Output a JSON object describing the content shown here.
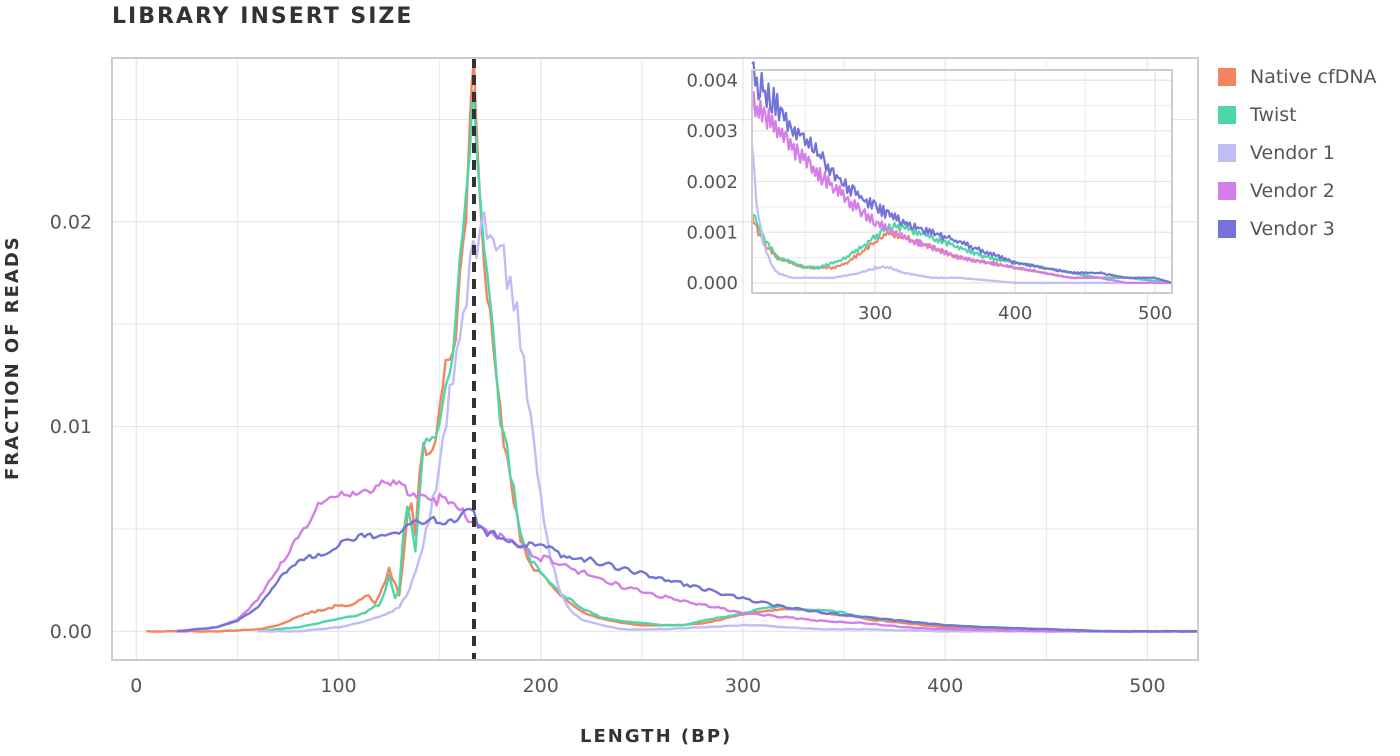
{
  "chart_data": [
    {
      "type": "line",
      "title": "LIBRARY INSERT SIZE",
      "xlabel": "LENGTH (BP)",
      "ylabel": "FRACTION OF READS",
      "xlim": [
        -12,
        525
      ],
      "ylim": [
        -0.0014,
        0.028
      ],
      "xticks": [
        "0",
        "100",
        "200",
        "300",
        "400",
        "500"
      ],
      "yticks": [
        "0.00",
        "0.01",
        "0.02"
      ],
      "grid": true,
      "legend_position": "right",
      "vline": {
        "x": 167,
        "style": "dashed",
        "color": "#333333"
      },
      "series": [
        {
          "name": "Native cfDNA",
          "color": "#f4845f",
          "x": [
            5,
            20,
            40,
            60,
            70,
            80,
            85,
            90,
            95,
            100,
            105,
            110,
            115,
            118,
            120,
            125,
            130,
            132,
            134,
            136,
            138,
            140,
            142,
            145,
            148,
            150,
            153,
            155,
            158,
            160,
            163,
            165,
            166,
            167,
            168,
            170,
            172,
            175,
            178,
            180,
            185,
            190,
            195,
            200,
            210,
            220,
            230,
            240,
            250,
            260,
            270,
            280,
            290,
            300,
            310,
            320,
            330,
            340,
            350,
            360,
            380,
            400,
            420,
            450,
            480,
            525
          ],
          "y": [
            0.0,
            0.0,
            0.0,
            0.0001,
            0.0003,
            0.0007,
            0.0009,
            0.001,
            0.0011,
            0.0013,
            0.0012,
            0.0015,
            0.0018,
            0.0014,
            0.0017,
            0.003,
            0.0018,
            0.0035,
            0.0055,
            0.0062,
            0.0045,
            0.0075,
            0.0093,
            0.0088,
            0.0095,
            0.0105,
            0.0128,
            0.0127,
            0.0148,
            0.0175,
            0.0205,
            0.0245,
            0.026,
            0.0268,
            0.0245,
            0.021,
            0.018,
            0.016,
            0.0125,
            0.0105,
            0.0075,
            0.0045,
            0.0032,
            0.0028,
            0.0017,
            0.001,
            0.0006,
            0.0004,
            0.0003,
            0.0003,
            0.0003,
            0.0004,
            0.0006,
            0.0008,
            0.001,
            0.0011,
            0.001,
            0.0009,
            0.0008,
            0.0006,
            0.0004,
            0.0002,
            0.0001,
            0.0001,
            0.0,
            0.0
          ]
        },
        {
          "name": "Twist",
          "color": "#4fd6a8",
          "x": [
            60,
            70,
            80,
            90,
            100,
            110,
            115,
            118,
            120,
            123,
            125,
            128,
            130,
            132,
            134,
            136,
            138,
            140,
            142,
            145,
            148,
            150,
            153,
            155,
            158,
            160,
            163,
            165,
            166,
            167,
            168,
            170,
            172,
            175,
            178,
            180,
            185,
            190,
            195,
            200,
            210,
            220,
            230,
            240,
            250,
            260,
            270,
            280,
            290,
            300,
            310,
            320,
            330,
            340,
            350,
            360,
            380,
            400,
            420,
            450,
            480,
            525
          ],
          "y": [
            0.0,
            0.0001,
            0.0002,
            0.0004,
            0.0006,
            0.0008,
            0.001,
            0.0012,
            0.0013,
            0.002,
            0.0028,
            0.0016,
            0.002,
            0.0045,
            0.006,
            0.0055,
            0.004,
            0.0068,
            0.009,
            0.0092,
            0.0093,
            0.0105,
            0.0125,
            0.0126,
            0.015,
            0.0178,
            0.0205,
            0.024,
            0.0258,
            0.0265,
            0.025,
            0.0215,
            0.0185,
            0.016,
            0.0125,
            0.0105,
            0.0078,
            0.0048,
            0.0034,
            0.0029,
            0.0019,
            0.0011,
            0.0007,
            0.0005,
            0.0004,
            0.0003,
            0.0003,
            0.0005,
            0.0007,
            0.0009,
            0.0011,
            0.0012,
            0.0011,
            0.001,
            0.0009,
            0.0007,
            0.0005,
            0.0003,
            0.0002,
            0.0001,
            0.0,
            0.0
          ]
        },
        {
          "name": "Vendor 1",
          "color": "#bfbdf4",
          "x": [
            60,
            80,
            100,
            110,
            120,
            125,
            130,
            135,
            140,
            145,
            150,
            155,
            160,
            165,
            170,
            172,
            175,
            178,
            180,
            185,
            190,
            195,
            200,
            205,
            210,
            215,
            220,
            230,
            240,
            250,
            260,
            280,
            300,
            310,
            320,
            340,
            360,
            400,
            450,
            525
          ],
          "y": [
            0.0,
            0.0,
            0.0002,
            0.0004,
            0.0007,
            0.0009,
            0.0012,
            0.002,
            0.0035,
            0.0055,
            0.008,
            0.0115,
            0.0145,
            0.0175,
            0.0195,
            0.0197,
            0.0195,
            0.019,
            0.0185,
            0.017,
            0.0145,
            0.0105,
            0.0065,
            0.0035,
            0.0018,
            0.001,
            0.0006,
            0.0003,
            0.0001,
            0.0001,
            0.0001,
            0.0002,
            0.0003,
            0.0003,
            0.0002,
            0.0001,
            0.0001,
            0.0,
            0.0,
            0.0
          ]
        },
        {
          "name": "Vendor 2",
          "color": "#d57de8",
          "x": [
            20,
            40,
            50,
            60,
            70,
            80,
            90,
            100,
            110,
            120,
            130,
            140,
            150,
            160,
            167,
            170,
            180,
            190,
            200,
            220,
            240,
            260,
            280,
            300,
            320,
            340,
            360,
            380,
            400,
            450,
            525
          ],
          "y": [
            0.0,
            0.0002,
            0.0006,
            0.0015,
            0.003,
            0.0048,
            0.006,
            0.0066,
            0.0069,
            0.007,
            0.0071,
            0.0068,
            0.0064,
            0.0058,
            0.0055,
            0.0052,
            0.0046,
            0.004,
            0.0036,
            0.0029,
            0.0022,
            0.0017,
            0.0013,
            0.0009,
            0.0007,
            0.0005,
            0.0004,
            0.0002,
            0.0001,
            0.0,
            0.0
          ]
        },
        {
          "name": "Vendor 3",
          "color": "#7373d8",
          "x": [
            20,
            40,
            50,
            60,
            70,
            80,
            90,
            100,
            110,
            120,
            130,
            140,
            150,
            160,
            165,
            167,
            169,
            172,
            180,
            190,
            200,
            210,
            220,
            240,
            260,
            280,
            300,
            320,
            340,
            360,
            380,
            400,
            420,
            450,
            480,
            525
          ],
          "y": [
            0.0,
            0.0002,
            0.0005,
            0.0012,
            0.0025,
            0.0033,
            0.0038,
            0.0042,
            0.0045,
            0.0048,
            0.005,
            0.0052,
            0.0054,
            0.0056,
            0.006,
            0.0058,
            0.005,
            0.0048,
            0.0046,
            0.0043,
            0.0041,
            0.0038,
            0.0036,
            0.0031,
            0.0026,
            0.0021,
            0.0016,
            0.0012,
            0.0009,
            0.0007,
            0.0005,
            0.0003,
            0.0002,
            0.0001,
            0.0,
            0.0
          ]
        }
      ]
    },
    {
      "type": "line",
      "title": "",
      "xlabel": "",
      "ylabel": "",
      "xlim": [
        212,
        512
      ],
      "ylim": [
        -0.0002,
        0.0042
      ],
      "xticks": [
        "300",
        "400",
        "500"
      ],
      "yticks": [
        "0.000",
        "0.001",
        "0.002",
        "0.003",
        "0.004"
      ],
      "grid": true,
      "series": [
        {
          "color": "#f4845f",
          "x": [
            212,
            220,
            230,
            240,
            250,
            260,
            270,
            280,
            290,
            300,
            305,
            310,
            320,
            330,
            340,
            350,
            360,
            380,
            400,
            420,
            440,
            460,
            480,
            512
          ],
          "y": [
            0.0013,
            0.0008,
            0.0005,
            0.0004,
            0.0003,
            0.0003,
            0.0003,
            0.0004,
            0.0006,
            0.0008,
            0.0009,
            0.001,
            0.0009,
            0.0008,
            0.0007,
            0.0006,
            0.0005,
            0.0004,
            0.0003,
            0.0002,
            0.0001,
            0.0001,
            0.0001,
            0.0
          ]
        },
        {
          "color": "#4fd6a8",
          "x": [
            212,
            220,
            230,
            240,
            250,
            260,
            270,
            280,
            290,
            300,
            305,
            310,
            320,
            330,
            340,
            350,
            360,
            380,
            400,
            420,
            440,
            460,
            480,
            512
          ],
          "y": [
            0.0014,
            0.0009,
            0.0005,
            0.0004,
            0.0003,
            0.0003,
            0.0004,
            0.0005,
            0.0007,
            0.0009,
            0.001,
            0.0011,
            0.0011,
            0.001,
            0.0009,
            0.0008,
            0.0007,
            0.0005,
            0.0004,
            0.0003,
            0.0002,
            0.0001,
            0.0001,
            0.0
          ]
        },
        {
          "color": "#bfbdf4",
          "x": [
            212,
            215,
            220,
            225,
            230,
            240,
            250,
            270,
            290,
            300,
            305,
            310,
            320,
            340,
            360,
            400,
            450,
            512
          ],
          "y": [
            0.0026,
            0.0016,
            0.0008,
            0.0004,
            0.0002,
            0.0001,
            0.0001,
            0.0001,
            0.0002,
            0.0003,
            0.0003,
            0.0003,
            0.0002,
            0.0001,
            0.0001,
            0.0,
            0.0,
            0.0
          ]
        },
        {
          "color": "#d57de8",
          "x": [
            212,
            230,
            250,
            270,
            290,
            300,
            320,
            340,
            360,
            380,
            400,
            420,
            440,
            460,
            480,
            512
          ],
          "y": [
            0.0036,
            0.003,
            0.0024,
            0.0019,
            0.0014,
            0.0012,
            0.0009,
            0.0007,
            0.0005,
            0.0004,
            0.0003,
            0.0002,
            0.0001,
            0.0001,
            0.0,
            0.0
          ]
        },
        {
          "color": "#7373d8",
          "x": [
            212,
            220,
            230,
            240,
            250,
            260,
            270,
            280,
            290,
            300,
            320,
            340,
            360,
            380,
            400,
            420,
            440,
            460,
            480,
            500,
            512
          ],
          "y": [
            0.0041,
            0.0038,
            0.0035,
            0.0031,
            0.0028,
            0.0025,
            0.0022,
            0.0019,
            0.0017,
            0.0015,
            0.0012,
            0.001,
            0.0008,
            0.0006,
            0.0004,
            0.0003,
            0.0002,
            0.0002,
            0.0001,
            0.0001,
            0.0
          ]
        }
      ]
    }
  ]
}
